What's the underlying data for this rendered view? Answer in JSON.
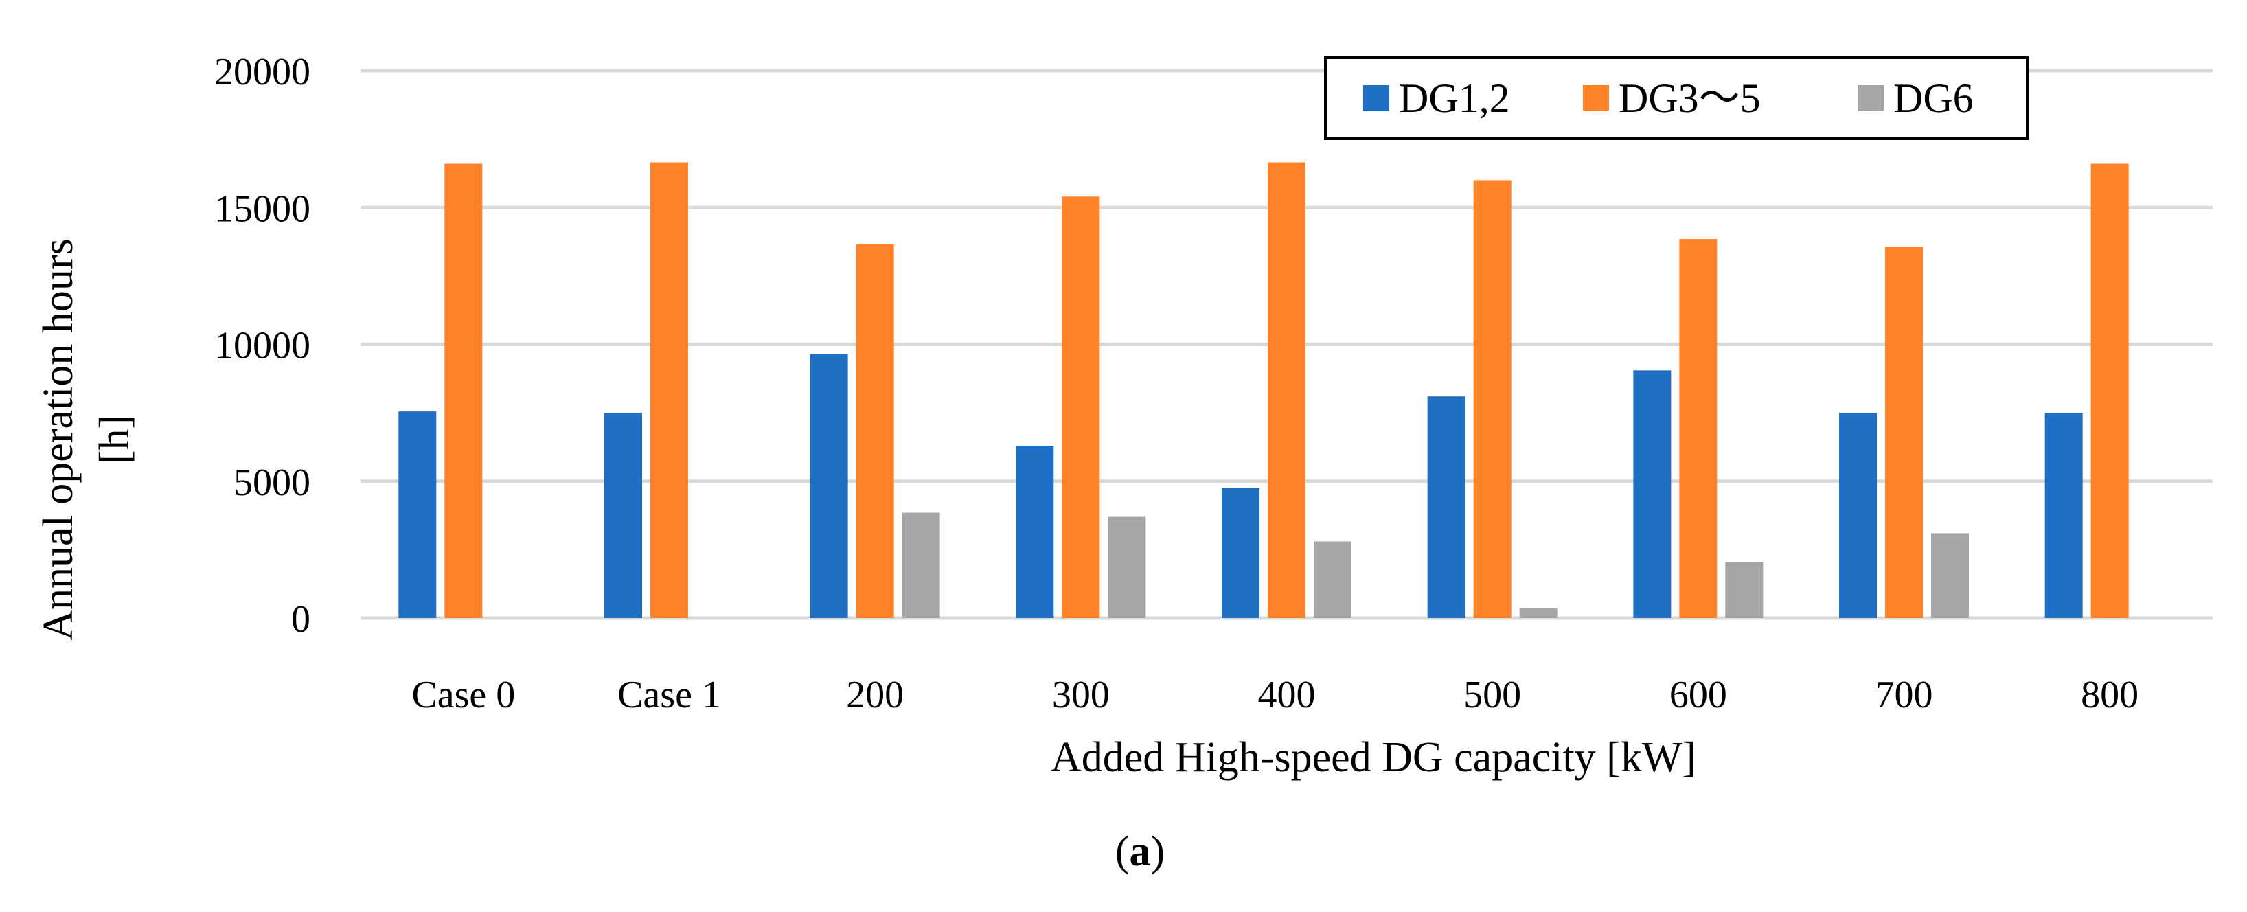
{
  "chart_data": {
    "type": "bar",
    "title": "",
    "xlabel": "Added High-speed DG capacity [kW]",
    "ylabel_line1": "Annual operation hours",
    "ylabel_line2": "[h]",
    "ylim": [
      0,
      20000
    ],
    "yticks": [
      0,
      5000,
      10000,
      15000,
      20000
    ],
    "ytick_labels": [
      "0",
      "5000",
      "10000",
      "15000",
      "20000"
    ],
    "grid": true,
    "legend_position": "top-right",
    "categories": [
      "Case 0",
      "Case 1",
      "200",
      "300",
      "400",
      "500",
      "600",
      "700",
      "800"
    ],
    "series": [
      {
        "name": "DG1,2",
        "color": "#1F6FC5",
        "values": [
          7550,
          7500,
          9650,
          6300,
          4750,
          8100,
          9050,
          7500,
          7500
        ]
      },
      {
        "name": "DG3～5",
        "color": "#FF8229",
        "values": [
          16600,
          16650,
          13650,
          15400,
          16650,
          16000,
          13850,
          13550,
          16600
        ]
      },
      {
        "name": "DG6",
        "color": "#A6A6A6",
        "values": [
          0,
          0,
          3850,
          3700,
          2800,
          350,
          2050,
          3100,
          0
        ]
      }
    ],
    "caption_open": "(",
    "caption_label": "a",
    "caption_close": ")"
  }
}
